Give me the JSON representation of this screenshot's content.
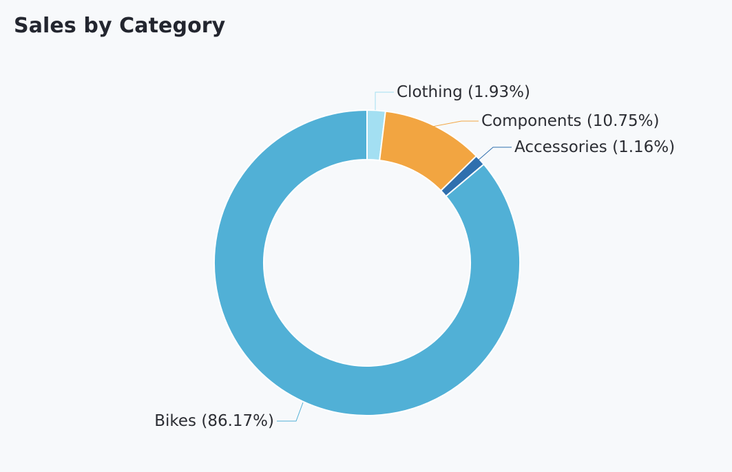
{
  "header": {
    "title": "Sales by Category"
  },
  "chart_data": {
    "type": "pie",
    "variant": "donut",
    "title": "Sales by Category",
    "slices": [
      {
        "name": "Clothing",
        "value": 1.93,
        "label": "Clothing (1.93%)",
        "color": "#a3dff2"
      },
      {
        "name": "Components",
        "value": 10.75,
        "label": "Components (10.75%)",
        "color": "#f2a541"
      },
      {
        "name": "Accessories",
        "value": 1.16,
        "label": "Accessories (1.16%)",
        "color": "#2f6fae"
      },
      {
        "name": "Bikes",
        "value": 86.17,
        "label": "Bikes (86.17%)",
        "color": "#51b0d6"
      }
    ],
    "legend": "none",
    "labels": "outside with leader lines"
  }
}
